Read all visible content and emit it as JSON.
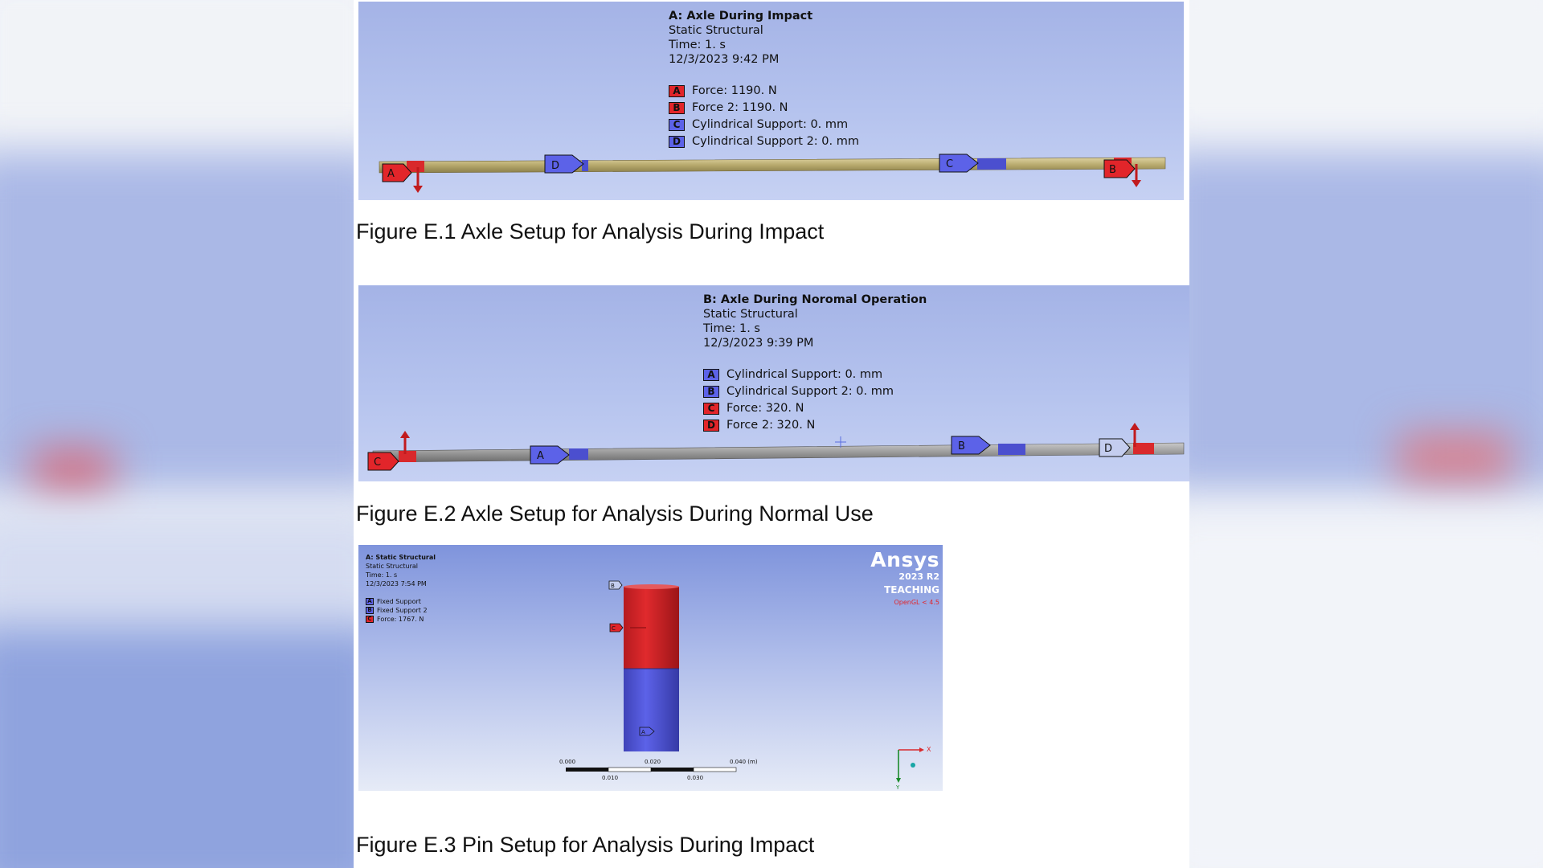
{
  "figure1": {
    "title": "A: Axle During Impact",
    "analysis": "Static Structural",
    "time": "Time: 1. s",
    "date": "12/3/2023 9:42 PM",
    "legend": [
      {
        "letter": "A",
        "label": "Force: 1190. N",
        "color": "#e2252a"
      },
      {
        "letter": "B",
        "label": "Force 2: 1190. N",
        "color": "#e2252a"
      },
      {
        "letter": "C",
        "label": "Cylindrical Support: 0. mm",
        "color": "#5c62e8"
      },
      {
        "letter": "D",
        "label": "Cylindrical Support 2: 0. mm",
        "color": "#5c62e8"
      }
    ],
    "tags": {
      "a": "A",
      "b": "B",
      "c": "C",
      "d": "D"
    },
    "caption": "Figure E.1 Axle Setup for Analysis During Impact"
  },
  "figure2": {
    "title": "B: Axle During Noromal Operation",
    "analysis": "Static Structural",
    "time": "Time: 1. s",
    "date": "12/3/2023 9:39 PM",
    "legend": [
      {
        "letter": "A",
        "label": "Cylindrical Support: 0. mm",
        "color": "#5c62e8"
      },
      {
        "letter": "B",
        "label": "Cylindrical Support 2: 0. mm",
        "color": "#5c62e8"
      },
      {
        "letter": "C",
        "label": "Force: 320. N",
        "color": "#e2252a"
      },
      {
        "letter": "D",
        "label": "Force 2: 320. N",
        "color": "#e2252a"
      }
    ],
    "tags": {
      "a": "A",
      "b": "B",
      "c": "C",
      "d": "D"
    },
    "caption": "Figure E.2 Axle Setup for Analysis During Normal Use"
  },
  "figure3": {
    "title": "A: Static Structural",
    "analysis": "Static Structural",
    "time": "Time: 1. s",
    "date": "12/3/2023 7:54 PM",
    "legend": [
      {
        "letter": "A",
        "label": "Fixed Support",
        "color": "#5c62e8"
      },
      {
        "letter": "B",
        "label": "Fixed Support 2",
        "color": "#5c62e8"
      },
      {
        "letter": "C",
        "label": "Force: 1767. N",
        "color": "#e2252a"
      }
    ],
    "tags": {
      "a": "A",
      "b": "B",
      "c": "C"
    },
    "brand": {
      "name": "Ansys",
      "version": "2023 R2",
      "edition": "TEACHING",
      "opengl": "OpenGL < 4.5"
    },
    "scale": {
      "t0": "0.000",
      "t1": "0.010",
      "t2": "0.020",
      "t3": "0.030",
      "t4": "0.040 (m)"
    },
    "axes": {
      "x": "X",
      "y": "Y"
    },
    "caption": "Figure E.3 Pin Setup for Analysis During Impact"
  }
}
